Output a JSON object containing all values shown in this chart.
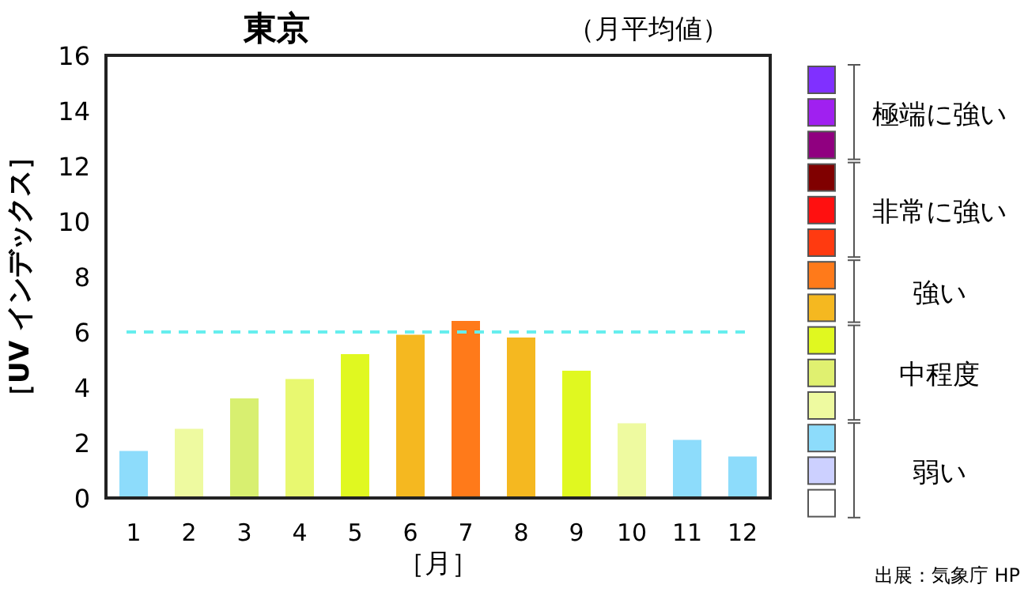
{
  "chart_data": {
    "type": "bar",
    "title": "東京",
    "subtitle": "（月平均値）",
    "xlabel": "［月］",
    "ylabel": "［UV インデックス］",
    "categories": [
      "1",
      "2",
      "3",
      "4",
      "5",
      "6",
      "7",
      "8",
      "9",
      "10",
      "11",
      "12"
    ],
    "values": [
      1.7,
      2.5,
      3.6,
      4.3,
      5.2,
      5.9,
      6.4,
      5.8,
      4.6,
      2.7,
      2.1,
      1.5
    ],
    "colors": [
      "#8ddcfb",
      "#eefaa0",
      "#d8ef70",
      "#e8f870",
      "#e0f820",
      "#f5b820",
      "#ff7a1a",
      "#f5b820",
      "#e0f820",
      "#eefaa0",
      "#8ddcfb",
      "#8ddcfb"
    ],
    "ylim": [
      0,
      16
    ],
    "yticks": [
      0,
      2,
      4,
      6,
      8,
      10,
      12,
      14,
      16
    ],
    "ref_lines": [
      {
        "axis": "y",
        "value": 6,
        "color": "#66eeee",
        "line_style": "dashed"
      }
    ],
    "annotations": [
      "極端に強い",
      "非常に強い",
      "強い",
      "中程度",
      "弱い",
      "出展：気象庁 HP"
    ]
  }
}
